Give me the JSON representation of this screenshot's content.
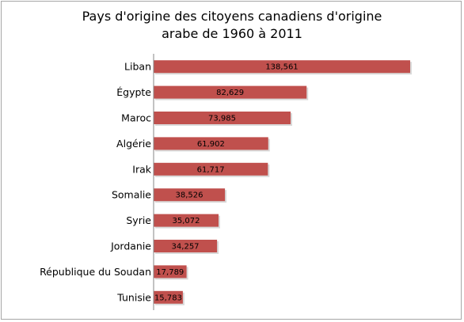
{
  "chart_data": {
    "type": "bar",
    "orientation": "horizontal",
    "title_lines": [
      "Pays d'origine des citoyens canadiens d'origine",
      "arabe de 1960 à 2011"
    ],
    "categories": [
      "Liban",
      "Égypte",
      "Maroc",
      "Algérie",
      "Irak",
      "Somalie",
      "Syrie",
      "Jordanie",
      "République du Soudan",
      "Tunisie"
    ],
    "values": [
      138561,
      82629,
      73985,
      61902,
      61717,
      38526,
      35072,
      34257,
      17789,
      15783
    ],
    "value_labels": [
      "138,561",
      "82,629",
      "73,985",
      "61,902",
      "61,717",
      "38,526",
      "35,072",
      "34,257",
      "17,789",
      "15,783"
    ],
    "xlim": [
      0,
      138561
    ],
    "grid": false,
    "legend": "none",
    "colors": {
      "bar": "#c0504d",
      "bar_shadow": "#d9d9d9",
      "axis": "#868686"
    }
  }
}
